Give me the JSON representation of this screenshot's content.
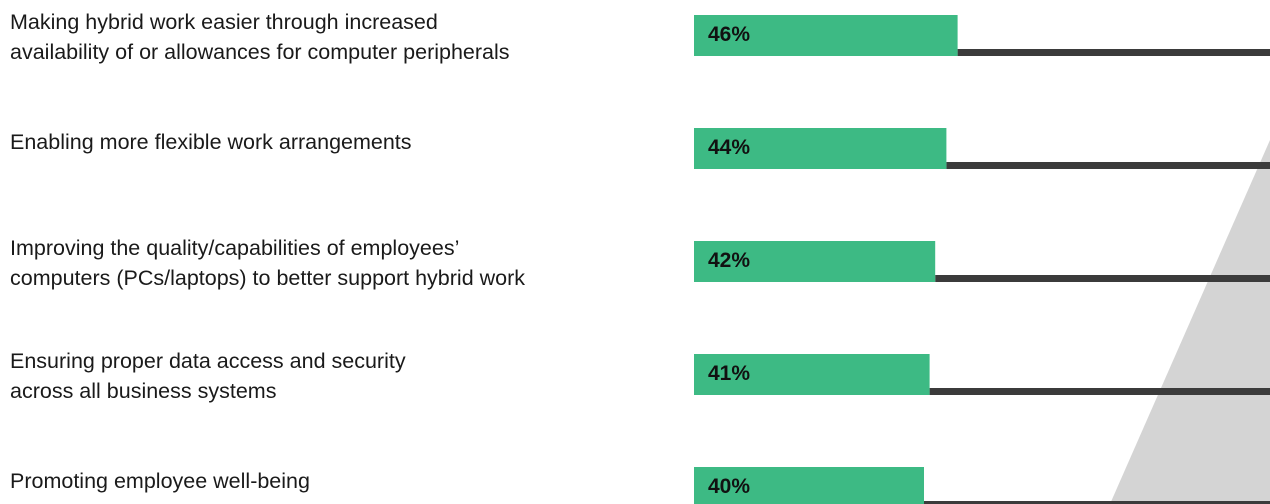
{
  "chart_data": {
    "type": "bar",
    "orientation": "horizontal",
    "categories": [
      "Making hybrid work easier through increased\navailability of or allowances for computer peripherals",
      "Enabling more flexible work arrangements",
      "Improving the quality/capabilities of employees’\ncomputers (PCs/laptops) to better support hybrid work",
      "Ensuring proper data access and security\nacross all business systems",
      "Promoting employee well-being"
    ],
    "values": [
      46,
      44,
      42,
      41,
      40
    ],
    "value_labels": [
      "46%",
      "44%",
      "42%",
      "41%",
      "40%"
    ],
    "unit": "%",
    "grid": false,
    "legend": "none"
  },
  "colors": {
    "bar": "#3dba84",
    "track": "#3b3b3b",
    "accent_stripe": "#d4d4d4",
    "text": "#1a1a1a"
  }
}
